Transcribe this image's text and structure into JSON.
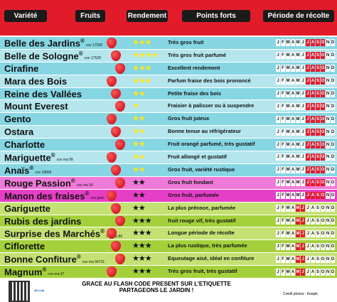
{
  "header": {
    "columns": [
      "Variété",
      "Fruits",
      "Rendement",
      "Points forts",
      "Période de récolte"
    ]
  },
  "months": [
    "J",
    "F",
    "M",
    "A",
    "M",
    "J",
    "J",
    "A",
    "S",
    "O",
    "N",
    "D"
  ],
  "rows": [
    {
      "name": "Belle des Jardins",
      "sup": "®",
      "cov": "cov 17528",
      "rating": 3,
      "strength": "Très gros fruit",
      "harvest": [
        6,
        7,
        8,
        9
      ]
    },
    {
      "name": "Belle de Sologne",
      "sup": "®",
      "cov": "cov 17528",
      "rating": 4,
      "strength": "Très gros fruit parfumé",
      "harvest": [
        6,
        7,
        8,
        9
      ]
    },
    {
      "name": "Cirafine",
      "rating": 3,
      "strength": "Excellent rendement",
      "harvest": [
        6,
        7,
        8,
        9
      ]
    },
    {
      "name": "Mara des Bois",
      "rating": 3,
      "strength": "Parfum fraise des bois prononcé",
      "harvest": [
        6,
        7,
        8,
        9
      ]
    },
    {
      "name": "Reine des Vallées",
      "rating": 2,
      "strength": "Petite fraise des bois",
      "harvest": [
        6,
        7,
        8,
        9
      ]
    },
    {
      "name": "Mount Everest",
      "rating": 1,
      "strength": "Fraisier à palisser ou à suspendre",
      "harvest": [
        6,
        7,
        8,
        9
      ]
    },
    {
      "name": "Gento",
      "rating": 2,
      "strength": "Gros fruit juteux",
      "harvest": [
        6,
        7,
        8,
        9
      ]
    },
    {
      "name": "Ostara",
      "rating": 2,
      "strength": "Bonne tenue au réfrigérateur",
      "harvest": [
        6,
        7,
        8,
        9
      ]
    },
    {
      "name": "Charlotte",
      "rating": 2,
      "strength": "Fruit orangé parfumé, très gustatif",
      "harvest": [
        6,
        7,
        8,
        9
      ]
    },
    {
      "name": "Mariguette",
      "sup": "®",
      "cov": "cov ma 99",
      "rating": 2,
      "strength": "Fruit allongé et gustatif",
      "harvest": [
        6,
        7,
        8,
        9
      ]
    },
    {
      "name": "Anaïs",
      "sup": "®",
      "cov": "cov 18865",
      "rating": 2,
      "strength": "Gros fruit, variété rustique",
      "harvest": [
        6,
        7,
        8,
        9
      ]
    },
    {
      "name": "Rouge Passion",
      "sup": "®",
      "cov": "cov ma 50",
      "rating": 2,
      "strength": "Gros fruit fondant",
      "harvest": [
        6,
        7,
        8,
        9
      ]
    },
    {
      "name": "Manon des fraises",
      "sup": "®",
      "cov": "cov janis",
      "rating": 2,
      "strength": "Gros fruit, parfumée",
      "harvest": [
        6,
        7,
        8,
        9
      ]
    },
    {
      "name": "Gariguette",
      "rating": 2,
      "strength": "La plus précoce, parfumée",
      "harvest": [
        4,
        5
      ]
    },
    {
      "name": "Rubis des jardins",
      "rating": 3,
      "strength": "fruit rouge vif, très gustatif",
      "harvest": [
        4,
        5
      ]
    },
    {
      "name": "Surprise des Marchés",
      "sup": "®",
      "cov": "cov ma 86",
      "rating": 3,
      "strength": "Longue période de récolte",
      "harvest": [
        4,
        5
      ]
    },
    {
      "name": "Ciflorette",
      "rating": 3,
      "strength": "La plus rustique, très parfumée",
      "harvest": [
        4,
        5
      ]
    },
    {
      "name": "Bonne Confiture",
      "sup": "®",
      "cov": "cov ma 94731",
      "rating": 3,
      "strength": "Equeutage aisé, idéal en confiture",
      "harvest": [
        4,
        5
      ]
    },
    {
      "name": "Magnum",
      "sup": "®",
      "cov": "cov ma 97",
      "rating": 3,
      "strength": "Très gros fruit, très gustatif",
      "harvest": [
        4,
        5
      ]
    }
  ],
  "footer": {
    "line1": "GRACE AU FLASH CODE PRESENT SUR L'ETIQUETTE",
    "line2": "PARTAGEONS LE JARDIN !",
    "credit": "Crédit photos : freepik"
  }
}
